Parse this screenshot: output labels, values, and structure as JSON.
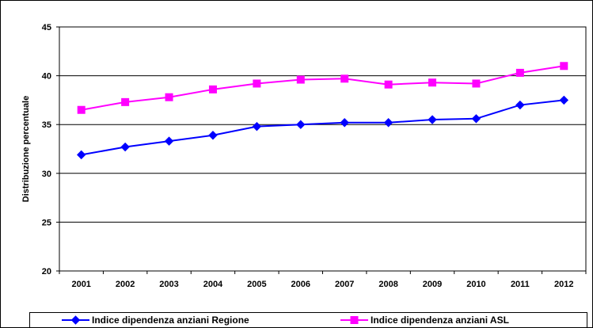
{
  "chart_data": {
    "type": "line",
    "title": "",
    "xlabel": "",
    "ylabel": "Distribuzione percentuale",
    "x": [
      "2001",
      "2002",
      "2003",
      "2004",
      "2005",
      "2006",
      "2007",
      "2008",
      "2009",
      "2010",
      "2011",
      "2012"
    ],
    "ylim": [
      20,
      45
    ],
    "yticks": [
      20,
      25,
      30,
      35,
      40,
      45
    ],
    "grid": true,
    "legend_position": "bottom",
    "series": [
      {
        "name": "Indice dipendenza anziani Regione",
        "color": "#0000FF",
        "marker": "diamond",
        "values": [
          31.9,
          32.7,
          33.3,
          33.9,
          34.8,
          35.0,
          35.2,
          35.2,
          35.5,
          35.6,
          37.0,
          37.5
        ]
      },
      {
        "name": "Indice dipendenza anziani ASL",
        "color": "#FF00FF",
        "marker": "square",
        "values": [
          36.5,
          37.3,
          37.8,
          38.6,
          39.2,
          39.6,
          39.7,
          39.1,
          39.3,
          39.2,
          40.3,
          41.0
        ]
      }
    ]
  }
}
